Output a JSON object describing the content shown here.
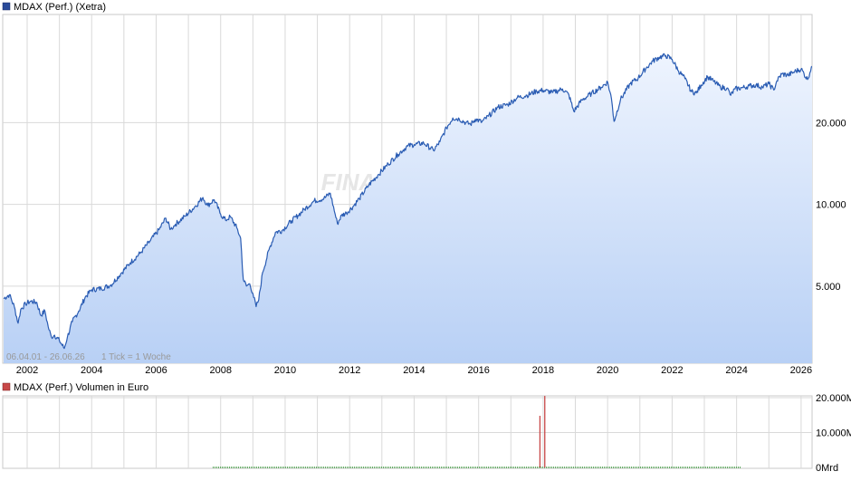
{
  "colors": {
    "price_line": "#2a5cb3",
    "price_fill_top": "#eef4fe",
    "price_fill_bottom": "#b8d0f5",
    "volume_bar": "#c84848",
    "volume_green": "#3a9a3a",
    "grid": "#d9d9d9"
  },
  "watermark": "FINANZEN.NET",
  "chart_data": [
    {
      "type": "line",
      "title": "MDAX (Perf.) (Xetra)",
      "date_range_label": "06.04.01 - 26.06.26",
      "tick_label": "1 Tick = 1 Woche",
      "scale": "log",
      "ylim": [
        2600,
        50000
      ],
      "x_ticks": [
        "2002",
        "2004",
        "2006",
        "2008",
        "2010",
        "2012",
        "2014",
        "2016",
        "2018",
        "2020",
        "2022",
        "2024",
        "2026"
      ],
      "y_ticks": [
        {
          "value": 5000,
          "label": "5.000"
        },
        {
          "value": 10000,
          "label": "10.000"
        },
        {
          "value": 20000,
          "label": "20.000"
        }
      ],
      "series": [
        {
          "x": [
            2001.27,
            2001.45,
            2001.6,
            2001.72,
            2001.8,
            2001.95,
            2002.1,
            2002.3,
            2002.42,
            2002.55,
            2002.65,
            2002.75,
            2002.85,
            2003.0,
            2003.15,
            2003.25,
            2003.4,
            2003.6,
            2003.8,
            2004.0,
            2004.3,
            2004.6,
            2004.9,
            2005.2,
            2005.5,
            2005.8,
            2006.1,
            2006.3,
            2006.45,
            2006.6,
            2006.9,
            2007.2,
            2007.45,
            2007.6,
            2007.8,
            2008.0,
            2008.15,
            2008.3,
            2008.5,
            2008.62,
            2008.7,
            2008.8,
            2008.9,
            2009.0,
            2009.1,
            2009.18,
            2009.3,
            2009.5,
            2009.7,
            2009.9,
            2010.2,
            2010.4,
            2010.6,
            2010.9,
            2011.2,
            2011.4,
            2011.55,
            2011.62,
            2011.75,
            2011.9,
            2012.1,
            2012.3,
            2012.6,
            2012.9,
            2013.2,
            2013.5,
            2013.8,
            2014.0,
            2014.3,
            2014.6,
            2014.8,
            2015.0,
            2015.2,
            2015.4,
            2015.6,
            2015.75,
            2015.9,
            2016.1,
            2016.3,
            2016.6,
            2016.9,
            2017.2,
            2017.5,
            2017.8,
            2018.0,
            2018.3,
            2018.6,
            2018.8,
            2018.95,
            2019.2,
            2019.5,
            2019.8,
            2020.0,
            2020.12,
            2020.2,
            2020.4,
            2020.7,
            2020.95,
            2021.2,
            2021.4,
            2021.6,
            2021.8,
            2022.0,
            2022.2,
            2022.4,
            2022.6,
            2022.75,
            2022.9,
            2023.1,
            2023.3,
            2023.5,
            2023.7,
            2023.82,
            2023.95,
            2024.2,
            2024.4,
            2024.6,
            2024.8,
            2025.0,
            2025.15,
            2025.25,
            2025.4,
            2025.6,
            2025.8,
            2026.0,
            2026.2,
            2026.32,
            2026.45
          ],
          "y": [
            4500,
            4650,
            4200,
            3650,
            4100,
            4300,
            4400,
            4350,
            3900,
            4050,
            3550,
            3250,
            3300,
            3150,
            2950,
            3250,
            3700,
            4050,
            4550,
            4850,
            4900,
            5050,
            5550,
            6100,
            6600,
            7300,
            8100,
            8900,
            8100,
            8450,
            9050,
            9800,
            10600,
            9900,
            10400,
            9200,
            8750,
            9000,
            8200,
            7500,
            5300,
            5000,
            5100,
            4700,
            4200,
            4450,
            5600,
            6800,
            7900,
            8000,
            8700,
            9100,
            9600,
            10300,
            10500,
            11000,
            9200,
            8500,
            9100,
            9300,
            9800,
            10500,
            11800,
            12900,
            14100,
            15300,
            16400,
            16600,
            16800,
            15800,
            17000,
            19100,
            20800,
            20600,
            20000,
            19700,
            20600,
            20100,
            21100,
            22800,
            23300,
            24700,
            25200,
            26100,
            26300,
            25800,
            26600,
            25300,
            22000,
            24200,
            25600,
            27000,
            28200,
            24500,
            20200,
            24300,
            27800,
            29200,
            31800,
            33700,
            34800,
            35300,
            34200,
            31000,
            29000,
            26000,
            25700,
            27500,
            29500,
            28300,
            27000,
            26800,
            25200,
            26600,
            26900,
            27300,
            27500,
            27000,
            27800,
            26400,
            28500,
            30200,
            29900,
            30800,
            31500,
            28800,
            32100,
            31700
          ]
        }
      ]
    },
    {
      "type": "bar",
      "title": "MDAX (Perf.) Volumen in Euro",
      "ylim": [
        0,
        20000
      ],
      "y_ticks": [
        {
          "value": 0,
          "label": "0Mrd"
        },
        {
          "value": 10000,
          "label": "10.000M"
        },
        {
          "value": 20000,
          "label": "20.000M"
        }
      ],
      "series": [
        {
          "x": [
            2017.9,
            2018.05
          ],
          "values": [
            14800,
            20500
          ]
        }
      ]
    }
  ]
}
